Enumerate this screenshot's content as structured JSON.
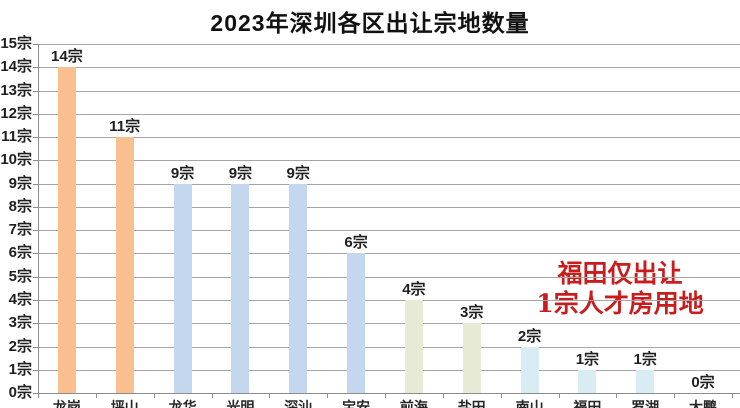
{
  "chart_data": {
    "type": "bar",
    "title": "2023年深圳各区出让宗地数量",
    "categories": [
      "龙岗",
      "坪山",
      "龙华",
      "光明",
      "深汕",
      "宝安",
      "前海",
      "盐田",
      "南山",
      "福田",
      "罗湖",
      "大鹏"
    ],
    "values": [
      14,
      11,
      9,
      9,
      9,
      6,
      4,
      3,
      2,
      1,
      1,
      0
    ],
    "data_labels": [
      "14宗",
      "11宗",
      "9宗",
      "9宗",
      "9宗",
      "6宗",
      "4宗",
      "3宗",
      "2宗",
      "1宗",
      "1宗",
      "0宗"
    ],
    "y_tick_labels": [
      "0宗",
      "1宗",
      "2宗",
      "3宗",
      "4宗",
      "5宗",
      "6宗",
      "7宗",
      "8宗",
      "9宗",
      "10宗",
      "11宗",
      "12宗",
      "13宗",
      "14宗",
      "15宗"
    ],
    "ylim": [
      0,
      15
    ],
    "ytick_step": 1,
    "grid": true,
    "legend": false,
    "unit": "宗",
    "bar_colors": [
      "#f9bf8f",
      "#f9bf8f",
      "#c3d7ef",
      "#c3d7ef",
      "#c3d7ef",
      "#c3d7ef",
      "#e7ead4",
      "#e7ead4",
      "#d8ecf4",
      "#d8ecf4",
      "#d8ecf4",
      null
    ],
    "colors": {
      "gridline": "#a6a6a6",
      "axis": "#8c8c8c",
      "label": "#1f1f1f",
      "title": "#111111"
    },
    "annotation": {
      "line1": "福田仅出让",
      "line2": "1宗人才房用地",
      "color": "#c91c1c"
    }
  }
}
